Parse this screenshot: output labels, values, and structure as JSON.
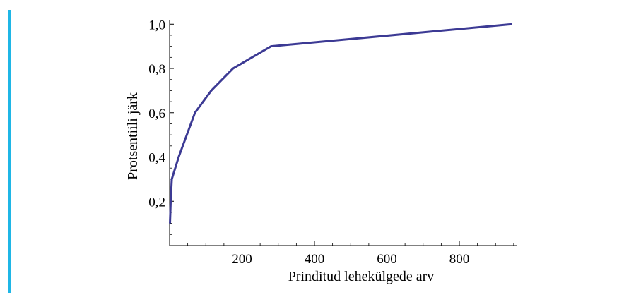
{
  "accent_color": "#1fb6e6",
  "chart_data": {
    "type": "line",
    "title": "",
    "xlabel": "Prinditud lehekülgede arv",
    "ylabel": "Protsentiili järk",
    "xlim": [
      0,
      960
    ],
    "ylim": [
      0.0,
      1.02
    ],
    "x_ticks": [
      200,
      400,
      600,
      800
    ],
    "x_tick_labels": [
      "200",
      "400",
      "600",
      "800"
    ],
    "y_ticks": [
      0.2,
      0.4,
      0.6,
      0.8,
      1.0
    ],
    "y_tick_labels": [
      "0,2",
      "0,4",
      "0,6",
      "0,8",
      "1,0"
    ],
    "grid": false,
    "series": [
      {
        "color": "#3c3a94",
        "x": [
          1,
          3,
          6,
          25,
          70,
          115,
          175,
          280,
          945
        ],
        "y": [
          0.1,
          0.2,
          0.3,
          0.4,
          0.6,
          0.7,
          0.8,
          0.9,
          1.0
        ]
      }
    ]
  }
}
